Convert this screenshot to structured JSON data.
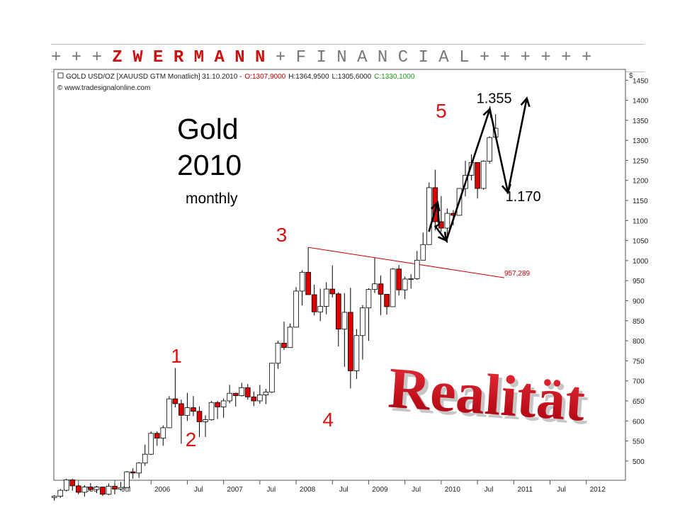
{
  "banner": {
    "prefix": "+ + + ",
    "name": "Z W E R M A N N",
    "suffix": " + F I N A N C I A L + + + + + +"
  },
  "chart_data": {
    "type": "candlestick",
    "header": {
      "instrument": "GOLD USD/OZ [XAUUSD GTM  Monatlich] 31.10.2010 -",
      "open": "O:1307,9000",
      "high": "H:1364,9500",
      "low": "L:1305,6000",
      "close": "C:1330,1000",
      "source": "© www.tradesignalonline.com"
    },
    "annotation_title": {
      "line1": "Gold",
      "line2": "2010",
      "line3": "monthly"
    },
    "watermark": "Realität",
    "currency_label": "$",
    "ylim": [
      452,
      1477
    ],
    "yticks": [
      500,
      550,
      600,
      650,
      700,
      750,
      800,
      850,
      900,
      950,
      1000,
      1050,
      1100,
      1150,
      1200,
      1250,
      1300,
      1350,
      1400,
      1450
    ],
    "xlim": [
      2004.66,
      2012.54
    ],
    "xticks": [
      {
        "label": "2005",
        "x": 2005.0
      },
      {
        "label": "Jul",
        "x": 2005.5
      },
      {
        "label": "2006",
        "x": 2006.0
      },
      {
        "label": "Jul",
        "x": 2006.5
      },
      {
        "label": "2007",
        "x": 2007.0
      },
      {
        "label": "Jul",
        "x": 2007.5
      },
      {
        "label": "2008",
        "x": 2008.0
      },
      {
        "label": "Jul",
        "x": 2008.5
      },
      {
        "label": "2009",
        "x": 2009.0
      },
      {
        "label": "Jul",
        "x": 2009.5
      },
      {
        "label": "2010",
        "x": 2010.0
      },
      {
        "label": "Jul",
        "x": 2010.5
      },
      {
        "label": "2011",
        "x": 2011.0
      },
      {
        "label": "Jul",
        "x": 2011.5
      },
      {
        "label": "2012",
        "x": 2012.0
      }
    ],
    "candles": [
      {
        "d": "2004-09",
        "o": 409,
        "h": 415,
        "l": 401,
        "c": 412
      },
      {
        "d": "2004-10",
        "o": 412,
        "h": 430,
        "l": 408,
        "c": 427
      },
      {
        "d": "2004-11",
        "o": 427,
        "h": 456,
        "l": 424,
        "c": 453
      },
      {
        "d": "2004-12",
        "o": 453,
        "h": 456,
        "l": 426,
        "c": 438
      },
      {
        "d": "2005-01",
        "o": 438,
        "h": 442,
        "l": 417,
        "c": 422
      },
      {
        "d": "2005-02",
        "o": 422,
        "h": 440,
        "l": 411,
        "c": 435
      },
      {
        "d": "2005-03",
        "o": 435,
        "h": 445,
        "l": 424,
        "c": 429
      },
      {
        "d": "2005-04",
        "o": 429,
        "h": 438,
        "l": 420,
        "c": 435
      },
      {
        "d": "2005-05",
        "o": 435,
        "h": 436,
        "l": 413,
        "c": 417
      },
      {
        "d": "2005-06",
        "o": 417,
        "h": 444,
        "l": 415,
        "c": 437
      },
      {
        "d": "2005-07",
        "o": 437,
        "h": 444,
        "l": 417,
        "c": 430
      },
      {
        "d": "2005-08",
        "o": 430,
        "h": 448,
        "l": 426,
        "c": 434
      },
      {
        "d": "2005-09",
        "o": 434,
        "h": 475,
        "l": 433,
        "c": 473
      },
      {
        "d": "2005-10",
        "o": 473,
        "h": 482,
        "l": 456,
        "c": 470
      },
      {
        "d": "2005-11",
        "o": 470,
        "h": 497,
        "l": 458,
        "c": 495
      },
      {
        "d": "2005-12",
        "o": 495,
        "h": 541,
        "l": 488,
        "c": 517
      },
      {
        "d": "2006-01",
        "o": 517,
        "h": 574,
        "l": 515,
        "c": 569
      },
      {
        "d": "2006-02",
        "o": 569,
        "h": 574,
        "l": 538,
        "c": 557
      },
      {
        "d": "2006-03",
        "o": 557,
        "h": 589,
        "l": 538,
        "c": 583
      },
      {
        "d": "2006-04",
        "o": 583,
        "h": 662,
        "l": 582,
        "c": 655
      },
      {
        "d": "2006-05",
        "o": 655,
        "h": 732,
        "l": 634,
        "c": 643
      },
      {
        "d": "2006-06",
        "o": 643,
        "h": 653,
        "l": 543,
        "c": 614
      },
      {
        "d": "2006-07",
        "o": 614,
        "h": 670,
        "l": 600,
        "c": 633
      },
      {
        "d": "2006-08",
        "o": 633,
        "h": 662,
        "l": 612,
        "c": 624
      },
      {
        "d": "2006-09",
        "o": 624,
        "h": 636,
        "l": 560,
        "c": 598
      },
      {
        "d": "2006-10",
        "o": 598,
        "h": 614,
        "l": 560,
        "c": 603
      },
      {
        "d": "2006-11",
        "o": 603,
        "h": 650,
        "l": 601,
        "c": 646
      },
      {
        "d": "2006-12",
        "o": 646,
        "h": 650,
        "l": 605,
        "c": 635
      },
      {
        "d": "2007-01",
        "o": 635,
        "h": 656,
        "l": 608,
        "c": 650
      },
      {
        "d": "2007-02",
        "o": 650,
        "h": 690,
        "l": 644,
        "c": 669
      },
      {
        "d": "2007-03",
        "o": 669,
        "h": 670,
        "l": 636,
        "c": 663
      },
      {
        "d": "2007-04",
        "o": 663,
        "h": 695,
        "l": 661,
        "c": 683
      },
      {
        "d": "2007-05",
        "o": 683,
        "h": 692,
        "l": 653,
        "c": 660
      },
      {
        "d": "2007-06",
        "o": 660,
        "h": 673,
        "l": 637,
        "c": 650
      },
      {
        "d": "2007-07",
        "o": 650,
        "h": 690,
        "l": 643,
        "c": 665
      },
      {
        "d": "2007-08",
        "o": 665,
        "h": 680,
        "l": 642,
        "c": 672
      },
      {
        "d": "2007-09",
        "o": 672,
        "h": 745,
        "l": 670,
        "c": 744
      },
      {
        "d": "2007-10",
        "o": 744,
        "h": 800,
        "l": 730,
        "c": 794
      },
      {
        "d": "2007-11",
        "o": 794,
        "h": 848,
        "l": 777,
        "c": 783
      },
      {
        "d": "2007-12",
        "o": 783,
        "h": 843,
        "l": 784,
        "c": 834
      },
      {
        "d": "2008-01",
        "o": 834,
        "h": 934,
        "l": 833,
        "c": 924
      },
      {
        "d": "2008-02",
        "o": 924,
        "h": 976,
        "l": 888,
        "c": 971
      },
      {
        "d": "2008-03",
        "o": 971,
        "h": 1033,
        "l": 915,
        "c": 915
      },
      {
        "d": "2008-04",
        "o": 915,
        "h": 940,
        "l": 863,
        "c": 872
      },
      {
        "d": "2008-05",
        "o": 872,
        "h": 930,
        "l": 849,
        "c": 886
      },
      {
        "d": "2008-06",
        "o": 886,
        "h": 946,
        "l": 866,
        "c": 929
      },
      {
        "d": "2008-07",
        "o": 929,
        "h": 988,
        "l": 908,
        "c": 917
      },
      {
        "d": "2008-08",
        "o": 917,
        "h": 921,
        "l": 786,
        "c": 829
      },
      {
        "d": "2008-09",
        "o": 829,
        "h": 919,
        "l": 735,
        "c": 871
      },
      {
        "d": "2008-10",
        "o": 871,
        "h": 932,
        "l": 681,
        "c": 725
      },
      {
        "d": "2008-11",
        "o": 725,
        "h": 829,
        "l": 705,
        "c": 813
      },
      {
        "d": "2008-12",
        "o": 813,
        "h": 889,
        "l": 753,
        "c": 882
      },
      {
        "d": "2009-01",
        "o": 882,
        "h": 931,
        "l": 800,
        "c": 928
      },
      {
        "d": "2009-02",
        "o": 928,
        "h": 1007,
        "l": 919,
        "c": 942
      },
      {
        "d": "2009-03",
        "o": 942,
        "h": 963,
        "l": 864,
        "c": 916
      },
      {
        "d": "2009-04",
        "o": 916,
        "h": 910,
        "l": 865,
        "c": 885
      },
      {
        "d": "2009-05",
        "o": 885,
        "h": 981,
        "l": 884,
        "c": 979
      },
      {
        "d": "2009-06",
        "o": 979,
        "h": 989,
        "l": 913,
        "c": 927
      },
      {
        "d": "2009-07",
        "o": 927,
        "h": 960,
        "l": 904,
        "c": 954
      },
      {
        "d": "2009-08",
        "o": 954,
        "h": 966,
        "l": 930,
        "c": 955
      },
      {
        "d": "2009-09",
        "o": 955,
        "h": 1024,
        "l": 952,
        "c": 1001
      },
      {
        "d": "2009-10",
        "o": 1001,
        "h": 1070,
        "l": 1001,
        "c": 1040
      },
      {
        "d": "2009-11",
        "o": 1040,
        "h": 1195,
        "l": 1040,
        "c": 1182
      },
      {
        "d": "2009-12",
        "o": 1182,
        "h": 1227,
        "l": 1075,
        "c": 1097
      },
      {
        "d": "2010-01",
        "o": 1097,
        "h": 1161,
        "l": 1072,
        "c": 1081
      },
      {
        "d": "2010-02",
        "o": 1081,
        "h": 1130,
        "l": 1044,
        "c": 1118
      },
      {
        "d": "2010-03",
        "o": 1118,
        "h": 1126,
        "l": 1088,
        "c": 1113
      },
      {
        "d": "2010-04",
        "o": 1113,
        "h": 1181,
        "l": 1112,
        "c": 1180
      },
      {
        "d": "2010-05",
        "o": 1180,
        "h": 1249,
        "l": 1160,
        "c": 1213
      },
      {
        "d": "2010-06",
        "o": 1213,
        "h": 1265,
        "l": 1200,
        "c": 1245
      },
      {
        "d": "2010-07",
        "o": 1245,
        "h": 1244,
        "l": 1155,
        "c": 1180
      },
      {
        "d": "2010-08",
        "o": 1180,
        "h": 1250,
        "l": 1177,
        "c": 1248
      },
      {
        "d": "2010-09",
        "o": 1248,
        "h": 1310,
        "l": 1242,
        "c": 1307
      },
      {
        "d": "2010-10",
        "o": 1307.9,
        "h": 1364.95,
        "l": 1305.6,
        "c": 1330.1
      }
    ],
    "trendline": {
      "x1": 2008.17,
      "y1": 1033,
      "x2": 2010.87,
      "y2": 957.289,
      "label": "957,289",
      "color": "#cc0000"
    },
    "wave_labels": [
      {
        "text": "1",
        "x": 2006.35,
        "y": 745,
        "color": "#dd1111"
      },
      {
        "text": "2",
        "x": 2006.55,
        "y": 537,
        "color": "#dd1111"
      },
      {
        "text": "3",
        "x": 2007.8,
        "y": 1048,
        "color": "#dd1111"
      },
      {
        "text": "4",
        "x": 2008.44,
        "y": 586,
        "color": "#dd1111"
      },
      {
        "text": "5",
        "x": 2010.0,
        "y": 1357,
        "color": "#dd1111"
      }
    ],
    "forecast_path": [
      {
        "x": 2009.83,
        "y": 1072
      },
      {
        "x": 2009.95,
        "y": 1145
      },
      {
        "x": 2009.97,
        "y": 1090
      },
      {
        "x": 2009.92,
        "y": 1085
      },
      {
        "x": 2010.07,
        "y": 1050
      },
      {
        "x": 2010.67,
        "y": 1378
      },
      {
        "x": 2010.92,
        "y": 1170
      },
      {
        "x": 2011.18,
        "y": 1405
      }
    ],
    "forecast_labels": [
      {
        "text": "1.355",
        "x": 2010.73,
        "y": 1393
      },
      {
        "text": "1.170",
        "x": 2011.13,
        "y": 1148
      }
    ]
  }
}
